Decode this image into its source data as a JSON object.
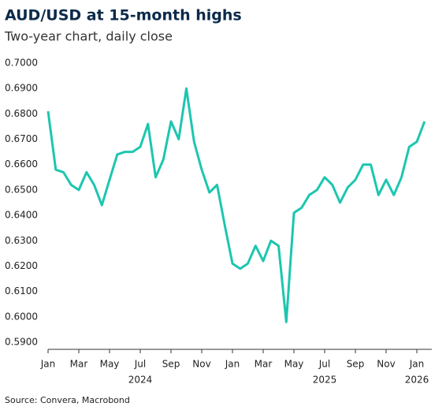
{
  "chart_data": {
    "type": "line",
    "title": "AUD/USD at 15-month highs",
    "subtitle": "Two-year chart, daily close",
    "source": "Source: Convera, Macrobond",
    "categories": [
      "Jan",
      null,
      null,
      null,
      "Mar",
      null,
      null,
      null,
      "May",
      null,
      null,
      null,
      "Jul",
      null,
      null,
      null,
      "Sep",
      null,
      null,
      null,
      "Nov",
      null,
      null,
      null,
      "Jan",
      null,
      null,
      null,
      "Mar",
      null,
      null,
      null,
      "May",
      null,
      null,
      null,
      "Jul",
      null,
      null,
      null,
      "Sep",
      null,
      null,
      null,
      "Nov",
      null,
      null,
      null,
      "Jan",
      null
    ],
    "years": [
      "2024",
      "2025",
      "2026"
    ],
    "series": [
      {
        "name": "AUD/USD",
        "color": "#1cc6b0",
        "values": [
          0.681,
          0.658,
          0.657,
          0.652,
          0.65,
          0.657,
          0.652,
          0.644,
          0.654,
          0.664,
          0.665,
          0.665,
          0.667,
          0.676,
          0.655,
          0.662,
          0.677,
          0.67,
          0.69,
          0.669,
          0.658,
          0.649,
          0.652,
          0.636,
          0.621,
          0.619,
          0.621,
          0.628,
          0.622,
          0.63,
          0.628,
          0.598,
          0.641,
          0.643,
          0.648,
          0.65,
          0.655,
          0.652,
          0.645,
          0.651,
          0.654,
          0.66,
          0.66,
          0.648,
          0.654,
          0.648,
          0.655,
          0.667,
          0.669,
          0.677
        ]
      }
    ],
    "ylim": [
      0.59,
      0.7
    ],
    "yticks": [
      {
        "value": 0.59,
        "label": "0.5900"
      },
      {
        "value": 0.6,
        "label": "0.6000"
      },
      {
        "value": 0.61,
        "label": "0.6100"
      },
      {
        "value": 0.62,
        "label": "0.6200"
      },
      {
        "value": 0.63,
        "label": "0.6300"
      },
      {
        "value": 0.64,
        "label": "0.6400"
      },
      {
        "value": 0.65,
        "label": "0.6500"
      },
      {
        "value": 0.66,
        "label": "0.6600"
      },
      {
        "value": 0.67,
        "label": "0.6700"
      },
      {
        "value": 0.68,
        "label": "0.6800"
      },
      {
        "value": 0.69,
        "label": "0.6900"
      },
      {
        "value": 0.7,
        "label": "0.7000"
      }
    ]
  }
}
